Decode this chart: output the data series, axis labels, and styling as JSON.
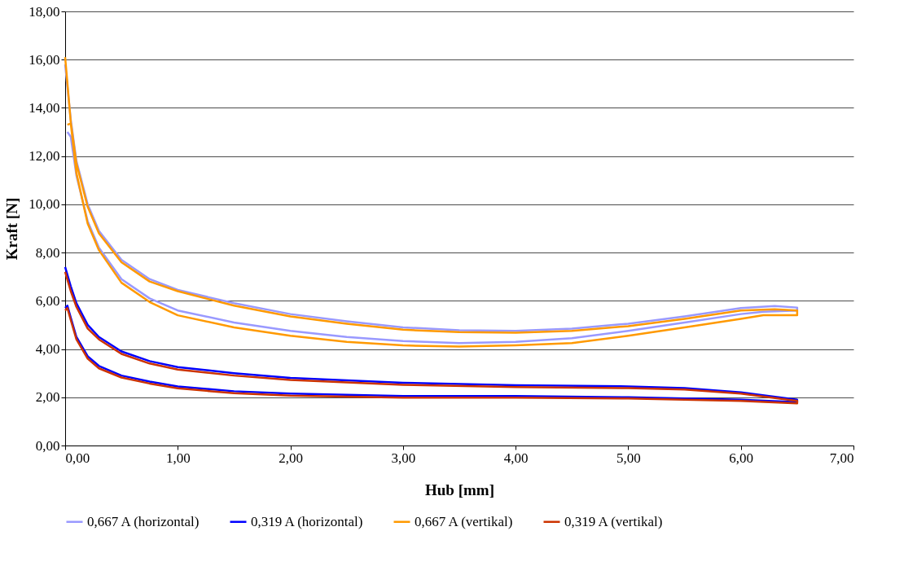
{
  "chart_data": {
    "type": "line",
    "xlabel": "Hub [mm]",
    "ylabel": "Kraft [N]",
    "xlim": [
      0,
      7
    ],
    "ylim": [
      0,
      18
    ],
    "xticks": [
      {
        "value": 0,
        "label": "0,00"
      },
      {
        "value": 1,
        "label": "1,00"
      },
      {
        "value": 2,
        "label": "2,00"
      },
      {
        "value": 3,
        "label": "3,00"
      },
      {
        "value": 4,
        "label": "4,00"
      },
      {
        "value": 5,
        "label": "5,00"
      },
      {
        "value": 6,
        "label": "6,00"
      },
      {
        "value": 7,
        "label": "7,00"
      }
    ],
    "yticks": [
      {
        "value": 0,
        "label": "0,00"
      },
      {
        "value": 2,
        "label": "2,00"
      },
      {
        "value": 4,
        "label": "4,00"
      },
      {
        "value": 6,
        "label": "6,00"
      },
      {
        "value": 8,
        "label": "8,00"
      },
      {
        "value": 10,
        "label": "10,00"
      },
      {
        "value": 12,
        "label": "12,00"
      },
      {
        "value": 14,
        "label": "14,00"
      },
      {
        "value": 16,
        "label": "16,00"
      },
      {
        "value": 18,
        "label": "18,00"
      }
    ],
    "grid": "y",
    "legend": "bottom",
    "marker": "none",
    "line_style": "solid",
    "series": [
      {
        "name": "0,667 A (horizontal)",
        "color": "#9999ff",
        "x": [
          0,
          0.05,
          0.1,
          0.2,
          0.3,
          0.5,
          0.75,
          1,
          1.5,
          2,
          2.5,
          3,
          3.5,
          4,
          4.5,
          5,
          5.5,
          6,
          6.3,
          6.5,
          6.5,
          6.2,
          6,
          5.5,
          5,
          4.5,
          4,
          3.5,
          3,
          2.5,
          2,
          1.5,
          1,
          0.75,
          0.5,
          0.3,
          0.2,
          0.1,
          0.05,
          0.02
        ],
        "values": [
          15.8,
          13.5,
          11.8,
          10.0,
          8.9,
          7.7,
          6.9,
          6.45,
          5.9,
          5.45,
          5.15,
          4.9,
          4.78,
          4.75,
          4.85,
          5.05,
          5.35,
          5.7,
          5.78,
          5.72,
          5.6,
          5.55,
          5.45,
          5.1,
          4.75,
          4.45,
          4.3,
          4.25,
          4.33,
          4.5,
          4.75,
          5.1,
          5.6,
          6.1,
          6.9,
          8.2,
          9.3,
          11.2,
          12.8,
          13.0
        ]
      },
      {
        "name": "0,319 A (horizontal)",
        "color": "#0000ff",
        "x": [
          0,
          0.05,
          0.1,
          0.2,
          0.3,
          0.5,
          0.75,
          1,
          1.5,
          2,
          3,
          4,
          5,
          5.5,
          6,
          6.5,
          6.5,
          6,
          5,
          4,
          3,
          2,
          1.5,
          1,
          0.75,
          0.5,
          0.3,
          0.2,
          0.1,
          0.05,
          0.02,
          0
        ],
        "values": [
          7.4,
          6.6,
          5.9,
          5.0,
          4.5,
          3.9,
          3.5,
          3.25,
          3.0,
          2.8,
          2.6,
          2.5,
          2.45,
          2.38,
          2.2,
          1.9,
          1.8,
          1.9,
          2.0,
          2.05,
          2.05,
          2.15,
          2.25,
          2.45,
          2.65,
          2.9,
          3.3,
          3.7,
          4.5,
          5.3,
          5.8,
          5.7
        ]
      },
      {
        "name": "0,667 A (vertikal)",
        "color": "#ff9900",
        "x": [
          0,
          0.05,
          0.1,
          0.2,
          0.3,
          0.5,
          0.75,
          1,
          1.5,
          2,
          2.5,
          3,
          3.5,
          4,
          4.5,
          5,
          5.5,
          6,
          6.3,
          6.5,
          6.5,
          6.2,
          6,
          5.5,
          5,
          4.5,
          4,
          3.5,
          3,
          2.5,
          2,
          1.5,
          1,
          0.75,
          0.5,
          0.3,
          0.2,
          0.1,
          0.05,
          0.02
        ],
        "values": [
          16.1,
          13.4,
          11.7,
          9.9,
          8.8,
          7.6,
          6.8,
          6.4,
          5.8,
          5.35,
          5.05,
          4.8,
          4.7,
          4.68,
          4.75,
          4.95,
          5.25,
          5.6,
          5.65,
          5.6,
          5.4,
          5.4,
          5.25,
          4.9,
          4.55,
          4.25,
          4.15,
          4.1,
          4.15,
          4.3,
          4.55,
          4.9,
          5.4,
          5.95,
          6.75,
          8.1,
          9.2,
          11.3,
          13.35,
          13.3
        ]
      },
      {
        "name": "0,319 A (vertikal)",
        "color": "#cc3300",
        "x": [
          0,
          0.05,
          0.1,
          0.2,
          0.3,
          0.5,
          0.75,
          1,
          1.5,
          2,
          3,
          4,
          5,
          5.5,
          6,
          6.5,
          6.5,
          6,
          5,
          4,
          3,
          2,
          1.5,
          1,
          0.75,
          0.5,
          0.3,
          0.2,
          0.1,
          0.05,
          0.02,
          0
        ],
        "values": [
          7.2,
          6.4,
          5.75,
          4.85,
          4.4,
          3.8,
          3.4,
          3.15,
          2.9,
          2.72,
          2.52,
          2.42,
          2.38,
          2.32,
          2.15,
          1.85,
          1.75,
          1.85,
          1.95,
          1.98,
          1.98,
          2.07,
          2.17,
          2.37,
          2.57,
          2.82,
          3.2,
          3.6,
          4.4,
          5.2,
          5.7,
          5.6
        ]
      }
    ]
  }
}
